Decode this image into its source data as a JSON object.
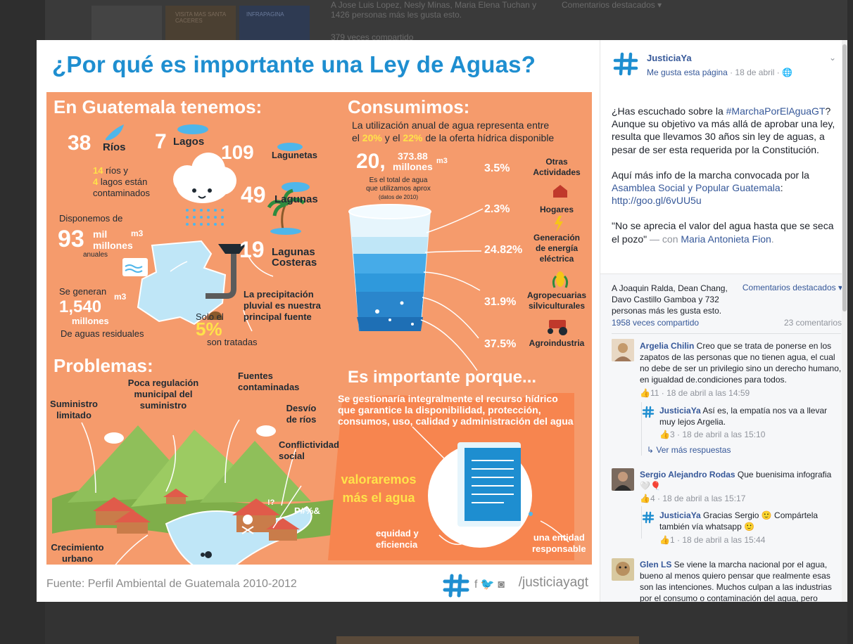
{
  "background": {
    "likes_text": "A Jose Luis Lopez, Nesly Minas, Maria Elena Tuchan y 1426 personas más les gusta esto.",
    "shares_text": "379 veces compartido",
    "featured": "Comentarios destacados ▾",
    "thumb_labels": [
      "",
      "VISITA MAS SANTA CACERES",
      "INFRAPAGINA"
    ]
  },
  "infographic": {
    "title": "¿Por qué es importante una Ley de Aguas?",
    "guatemala": {
      "heading": "En Guatemala tenemos:",
      "rios_num": "38",
      "rios_label": "Ríos",
      "lagos_num": "7",
      "lagos_label": "Lagos",
      "lagunetas_num": "109",
      "lagunetas_label": "Lagunetas",
      "lagunas_num": "49",
      "lagunas_label": "Lagunas",
      "costeras_num": "19",
      "costeras_label_1": "Lagunas",
      "costeras_label_2": "Costeras",
      "contam_num_rios": "14",
      "contam_rios": " ríos y",
      "contam_num_lagos": "4",
      "contam_lagos": " lagos están",
      "contam_end": "contaminados",
      "dispon_label": "Disponemos de",
      "dispon_num": "93",
      "dispon_unit_1": "mil",
      "dispon_unit_2": "millones",
      "dispon_m3": "m3",
      "dispon_anuales": "anuales",
      "genera_label": "Se generan",
      "genera_num": "1,540",
      "genera_millones": "millones",
      "genera_m3": "m3",
      "genera_end": "De aguas residuales",
      "solo_label": "Solo el",
      "solo_pct": "5%",
      "solo_end": "son tratadas",
      "precip_1": "La precipitación",
      "precip_2": "pluvial es nuestra",
      "precip_3": "principal fuente"
    },
    "consumo": {
      "heading": "Consumimos:",
      "sub_1": "La utilización anual de agua representa entre",
      "sub_2a": "el ",
      "sub_2b": "20%",
      "sub_2c": " y el ",
      "sub_2d": "22%",
      "sub_2e": " de la oferta hídrica disponible",
      "total_num": "20,",
      "total_small": "373.88",
      "total_millones": "millones",
      "total_m3": "m3",
      "total_desc_1": "Es el total de agua",
      "total_desc_2": "que utilizamos aprox",
      "total_desc_3": "(datos de 2010)"
    },
    "problemas": {
      "heading": "Problemas:",
      "suministro_1": "Suministro",
      "suministro_2": "limitado",
      "poca_1": "Poca regulación",
      "poca_2": "municipal del",
      "poca_3": "suministro",
      "fuentes_1": "Fuentes",
      "fuentes_2": "contaminadas",
      "desvio_1": "Desvío",
      "desvio_2": "de ríos",
      "conflict_1": "Conflictividad",
      "conflict_2": "social",
      "crec_1": "Crecimiento",
      "crec_2": "urbano",
      "symbols": "P#%&",
      "q": "!?"
    },
    "importante": {
      "heading": "Es importante porque...",
      "body_1": "Se gestionaría integralmente el recurso hídrico",
      "body_2": "que garantice la disponibilidad, protección,",
      "body_3": "consumos, uso, calidad y administración del agua",
      "valor_1": "valoraremos",
      "valor_2": "más el agua",
      "equidad_1": "equidad y",
      "equidad_2": "eficiencia",
      "entidad_1": "una entidad",
      "entidad_2": "responsable"
    },
    "source": "Fuente: Perfil Ambiental de Guatemala 2010-2012",
    "handle": "/justiciayagt",
    "social_icons": "f 🐦 ◙"
  },
  "chart_data": {
    "type": "bar",
    "title": "Consumimos:",
    "categories": [
      "Otras Actividades",
      "Hogares",
      "Generación de energía eléctrica",
      "Agropecuarias silviculturales",
      "Agroindustria"
    ],
    "values": [
      3.5,
      2.3,
      24.82,
      31.9,
      37.5
    ],
    "value_labels": [
      "3.5%",
      "2.3%",
      "24.82%",
      "31.9%",
      "37.5%"
    ],
    "category_lines": [
      [
        "Otras",
        "Actividades"
      ],
      [
        "Hogares"
      ],
      [
        "Generación",
        "de energía",
        "eléctrica"
      ],
      [
        "Agropecuarias",
        "silviculturales"
      ],
      [
        "Agroindustria"
      ]
    ],
    "colors": [
      "#1e6fb5",
      "#2a86cc",
      "#2f99dc",
      "#46abe8",
      "#bfe6f7"
    ]
  },
  "post": {
    "page_name": "JusticiaYa",
    "like_page": "Me gusta esta página",
    "date": " · 18 de abril · ",
    "globe_icon": "🌐",
    "chevron": "⌄",
    "p1_a": "¿Has escuchado sobre la ",
    "p1_tag": "#MarchaPorElAguaGT",
    "p1_b": "? Aunque su objetivo va más allá de aprobar una ley, resulta que llevamos 30 años sin ley de aguas, a pesar de ser esta requerida por la Constitución.",
    "p2_a": "Aquí más info de la marcha convocada por la ",
    "p2_link": "Asamblea Social y Popular Guatemala",
    "p2_b": ": ",
    "p2_url": "http://goo.gl/6vUU5u",
    "p3_a": "\"No se aprecia el valor del agua hasta que se seca el pozo\"",
    "p3_with": " — con ",
    "p3_person": "Maria Antonieta Fion",
    "p3_end": "."
  },
  "feedback": {
    "likes_text": "A Joaquin Ralda, Dean Chang, Davo Castillo Gamboa y 732 personas más les gusta esto.",
    "featured": "Comentarios destacados ▾",
    "shares": "1958 veces compartido",
    "comments_count": "23 comentarios"
  },
  "comments": [
    {
      "author": "Argelia Chilin",
      "text": " Creo que se trata de ponerse en los zapatos de las personas que no tienen agua, el cual no debe de ser un privilegio sino un derecho humano, en igualdad de.condiciones para todos.",
      "likes": "11",
      "time": "18 de abril a las 14:59"
    },
    {
      "author": "JusticiaYa",
      "text": " Así es, la empatía nos va a llevar muy lejos Argelia.",
      "likes": "3",
      "time": "18 de abril a las 15:10"
    },
    {
      "author": "Sergio Alejandro Rodas",
      "text": " Que buenisima infografia 🤍🎈",
      "likes": "4",
      "time": "18 de abril a las 15:17"
    },
    {
      "author": "JusticiaYa",
      "text": " Gracias Sergio 🙂 Compártela también vía whatsapp 🙂",
      "likes": "1",
      "time": "18 de abril a las 15:44"
    },
    {
      "author": "Glen LS",
      "text": " Se viene la marcha nacional por el agua, bueno al menos quiero pensar que realmente esas son las intenciones. Muchos culpan a las industrias por el consumo o contaminación del agua, pero",
      "likes": "",
      "time": ""
    }
  ],
  "more_replies": "↳ Ver más respuestas",
  "like_icon": "👍",
  "colors": {
    "panel_orange": "#f59b6c",
    "title_blue": "#1e8ed0",
    "fb_blue": "#365899",
    "highlight_yellow": "#ffe24a"
  }
}
